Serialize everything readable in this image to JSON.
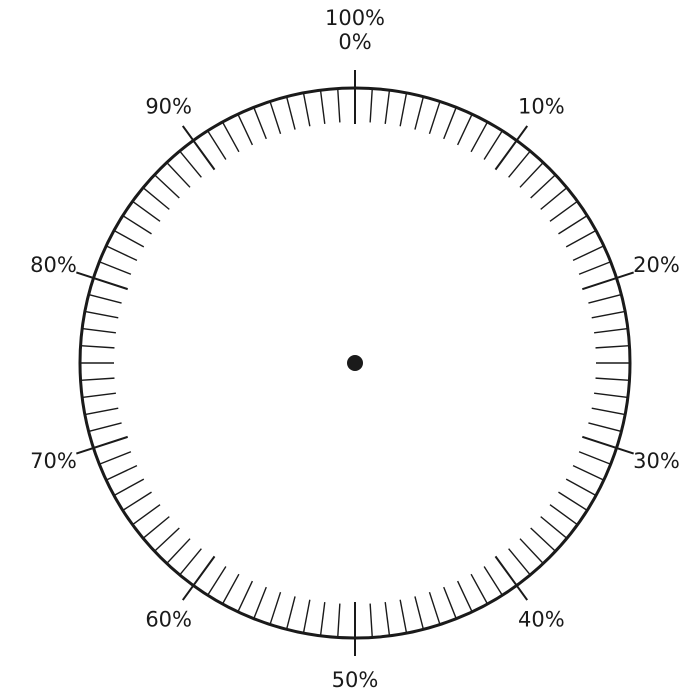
{
  "dial": {
    "scale": {
      "min_percent": 0,
      "max_percent": 100,
      "minor_tick_step_percent": 1,
      "major_tick_step_percent": 10
    },
    "labels": [
      {
        "percent": 0,
        "lines": [
          "100%",
          "0%"
        ]
      },
      {
        "percent": 10,
        "lines": [
          "10%"
        ]
      },
      {
        "percent": 20,
        "lines": [
          "20%"
        ]
      },
      {
        "percent": 30,
        "lines": [
          "30%"
        ]
      },
      {
        "percent": 40,
        "lines": [
          "40%"
        ]
      },
      {
        "percent": 50,
        "lines": [
          "50%"
        ]
      },
      {
        "percent": 60,
        "lines": [
          "60%"
        ]
      },
      {
        "percent": 70,
        "lines": [
          "70%"
        ]
      },
      {
        "percent": 80,
        "lines": [
          "80%"
        ]
      },
      {
        "percent": 90,
        "lines": [
          "90%"
        ]
      }
    ],
    "colors": {
      "ink": "#1a1a1a",
      "background": "#ffffff"
    }
  }
}
